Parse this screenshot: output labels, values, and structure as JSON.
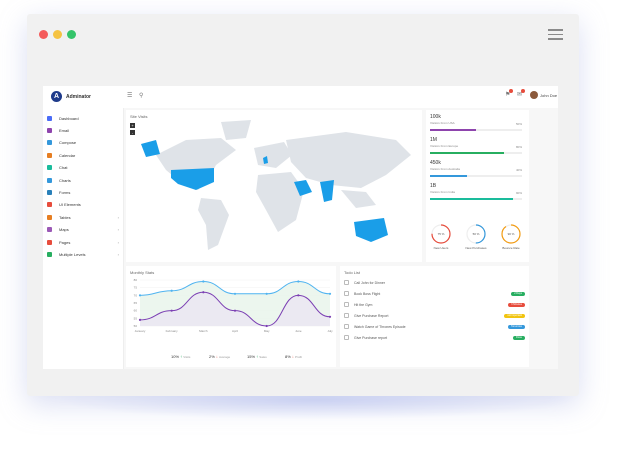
{
  "window": {
    "dot_colors": [
      "#f45b5b",
      "#f5c342",
      "#35c46a"
    ]
  },
  "header": {
    "brand": "Adminator",
    "user_name": "John Doe"
  },
  "sidebar": {
    "items": [
      {
        "label": "Dashboard",
        "icon": "home-icon",
        "color": "#4a6cf7",
        "has_arrow": false
      },
      {
        "label": "Email",
        "icon": "mail-icon",
        "color": "#8e44ad",
        "has_arrow": false
      },
      {
        "label": "Compose",
        "icon": "pencil-icon",
        "color": "#3498db",
        "has_arrow": false
      },
      {
        "label": "Calendar",
        "icon": "calendar-icon",
        "color": "#e67e22",
        "has_arrow": false
      },
      {
        "label": "Chat",
        "icon": "chat-icon",
        "color": "#1abc9c",
        "has_arrow": false
      },
      {
        "label": "Charts",
        "icon": "chart-icon",
        "color": "#3498db",
        "has_arrow": false
      },
      {
        "label": "Forms",
        "icon": "forms-icon",
        "color": "#2980b9",
        "has_arrow": false
      },
      {
        "label": "UI Elements",
        "icon": "ui-icon",
        "color": "#e74c3c",
        "has_arrow": false
      },
      {
        "label": "Tables",
        "icon": "table-icon",
        "color": "#e67e22",
        "has_arrow": true
      },
      {
        "label": "Maps",
        "icon": "map-icon",
        "color": "#9b59b6",
        "has_arrow": true
      },
      {
        "label": "Pages",
        "icon": "pages-icon",
        "color": "#e74c3c",
        "has_arrow": true
      },
      {
        "label": "Multiple Levels",
        "icon": "levels-icon",
        "color": "#27ae60",
        "has_arrow": true
      }
    ]
  },
  "map_card": {
    "title": "Site Visits",
    "highlight_color": "#1a9ee8",
    "land_color": "#dfe3e8"
  },
  "stats": [
    {
      "value": "100k",
      "label": "Visitors From USA",
      "percent": "50%",
      "fill": 0.5,
      "color": "#8e44ad"
    },
    {
      "value": "1M",
      "label": "Visitors From Europe",
      "percent": "80%",
      "fill": 0.8,
      "color": "#27ae60"
    },
    {
      "value": "450k",
      "label": "Visitors From Australia",
      "percent": "40%",
      "fill": 0.4,
      "color": "#3498db"
    },
    {
      "value": "1B",
      "label": "Visitors From India",
      "percent": "90%",
      "fill": 0.9,
      "color": "#1abc9c"
    }
  ],
  "gauges": [
    {
      "value": "75 %",
      "label": "New Users",
      "fill": 0.75,
      "color": "#e74c3c"
    },
    {
      "value": "50 %",
      "label": "New Purchases",
      "fill": 0.5,
      "color": "#3498db"
    },
    {
      "value": "90 %",
      "label": "Bounce Rate",
      "fill": 0.9,
      "color": "#f39c12"
    }
  ],
  "chart_card": {
    "title": "Monthly Stats"
  },
  "summary": [
    {
      "value": "10%",
      "arrow": "up",
      "label": "Visits",
      "color": "#27ae60"
    },
    {
      "value": "2%",
      "arrow": "down",
      "label": "Average",
      "color": "#e74c3c"
    },
    {
      "value": "15%",
      "arrow": "up",
      "label": "Sales",
      "color": "#27ae60"
    },
    {
      "value": "8%",
      "arrow": "down",
      "label": "Profit",
      "color": "#e74c3c"
    }
  ],
  "chart_data": {
    "type": "area",
    "categories": [
      "January",
      "February",
      "March",
      "April",
      "May",
      "June",
      "July"
    ],
    "ylim": [
      50,
      80
    ],
    "yticks": [
      50,
      55,
      60,
      65,
      70,
      75,
      80
    ],
    "series": [
      {
        "values": [
          70,
          73,
          79,
          71,
          71,
          79,
          71
        ],
        "color": "#4fb3f0"
      },
      {
        "values": [
          54,
          60,
          72,
          60,
          50,
          70,
          56
        ],
        "color": "#7b3fb3"
      }
    ]
  },
  "todo_card": {
    "title": "Todo List",
    "items": [
      {
        "text": "Call John for Dinner",
        "tag": "",
        "tag_color": ""
      },
      {
        "text": "Book Boss Flight",
        "tag": "2 Days",
        "tag_color": "#27ae60"
      },
      {
        "text": "Hit the Gym",
        "tag": "3 Minutes",
        "tag_color": "#e74c3c"
      },
      {
        "text": "Give Purchase Report",
        "tag": "not important",
        "tag_color": "#f1c40f"
      },
      {
        "text": "Watch Game of Thrones Episode",
        "tag": "Tomorrow",
        "tag_color": "#3498db"
      },
      {
        "text": "Give Purchase report",
        "tag": "Done",
        "tag_color": "#27ae60"
      }
    ]
  }
}
